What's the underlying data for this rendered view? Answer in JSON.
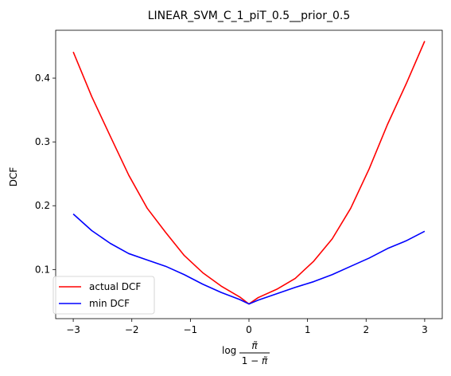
{
  "chart_data": {
    "type": "line",
    "title": "LINEAR_SVM_C_1_piT_0.5__prior_0.5",
    "xlabel": "log π̃/(1−π̃)",
    "ylabel": "DCF",
    "xlim": [
      -3.3,
      3.3
    ],
    "ylim": [
      0.023,
      0.475
    ],
    "xticks": [
      -3,
      -2,
      -1,
      0,
      1,
      2,
      3
    ],
    "xtick_labels": [
      "−3",
      "−2",
      "−1",
      "0",
      "1",
      "2",
      "3"
    ],
    "yticks": [
      0.1,
      0.2,
      0.3,
      0.4
    ],
    "ytick_labels": [
      "0.1",
      "0.2",
      "0.3",
      "0.4"
    ],
    "grid": false,
    "legend_position": "lower-left",
    "x": [
      -3.0,
      -2.684,
      -2.368,
      -2.053,
      -1.737,
      -1.421,
      -1.105,
      -0.789,
      -0.474,
      -0.158,
      0.0,
      0.158,
      0.474,
      0.789,
      1.105,
      1.421,
      1.737,
      2.053,
      2.368,
      2.684,
      3.0
    ],
    "series": [
      {
        "name": "actual DCF",
        "color": "#ff0000",
        "values": [
          0.441,
          0.371,
          0.309,
          0.248,
          0.196,
          0.158,
          0.122,
          0.095,
          0.074,
          0.057,
          0.046,
          0.056,
          0.069,
          0.086,
          0.113,
          0.148,
          0.196,
          0.258,
          0.328,
          0.391,
          0.458
        ]
      },
      {
        "name": "min DCF",
        "color": "#0000ff",
        "values": [
          0.187,
          0.161,
          0.141,
          0.125,
          0.115,
          0.105,
          0.092,
          0.077,
          0.064,
          0.053,
          0.046,
          0.052,
          0.062,
          0.072,
          0.081,
          0.092,
          0.105,
          0.118,
          0.133,
          0.145,
          0.16
        ]
      }
    ]
  }
}
